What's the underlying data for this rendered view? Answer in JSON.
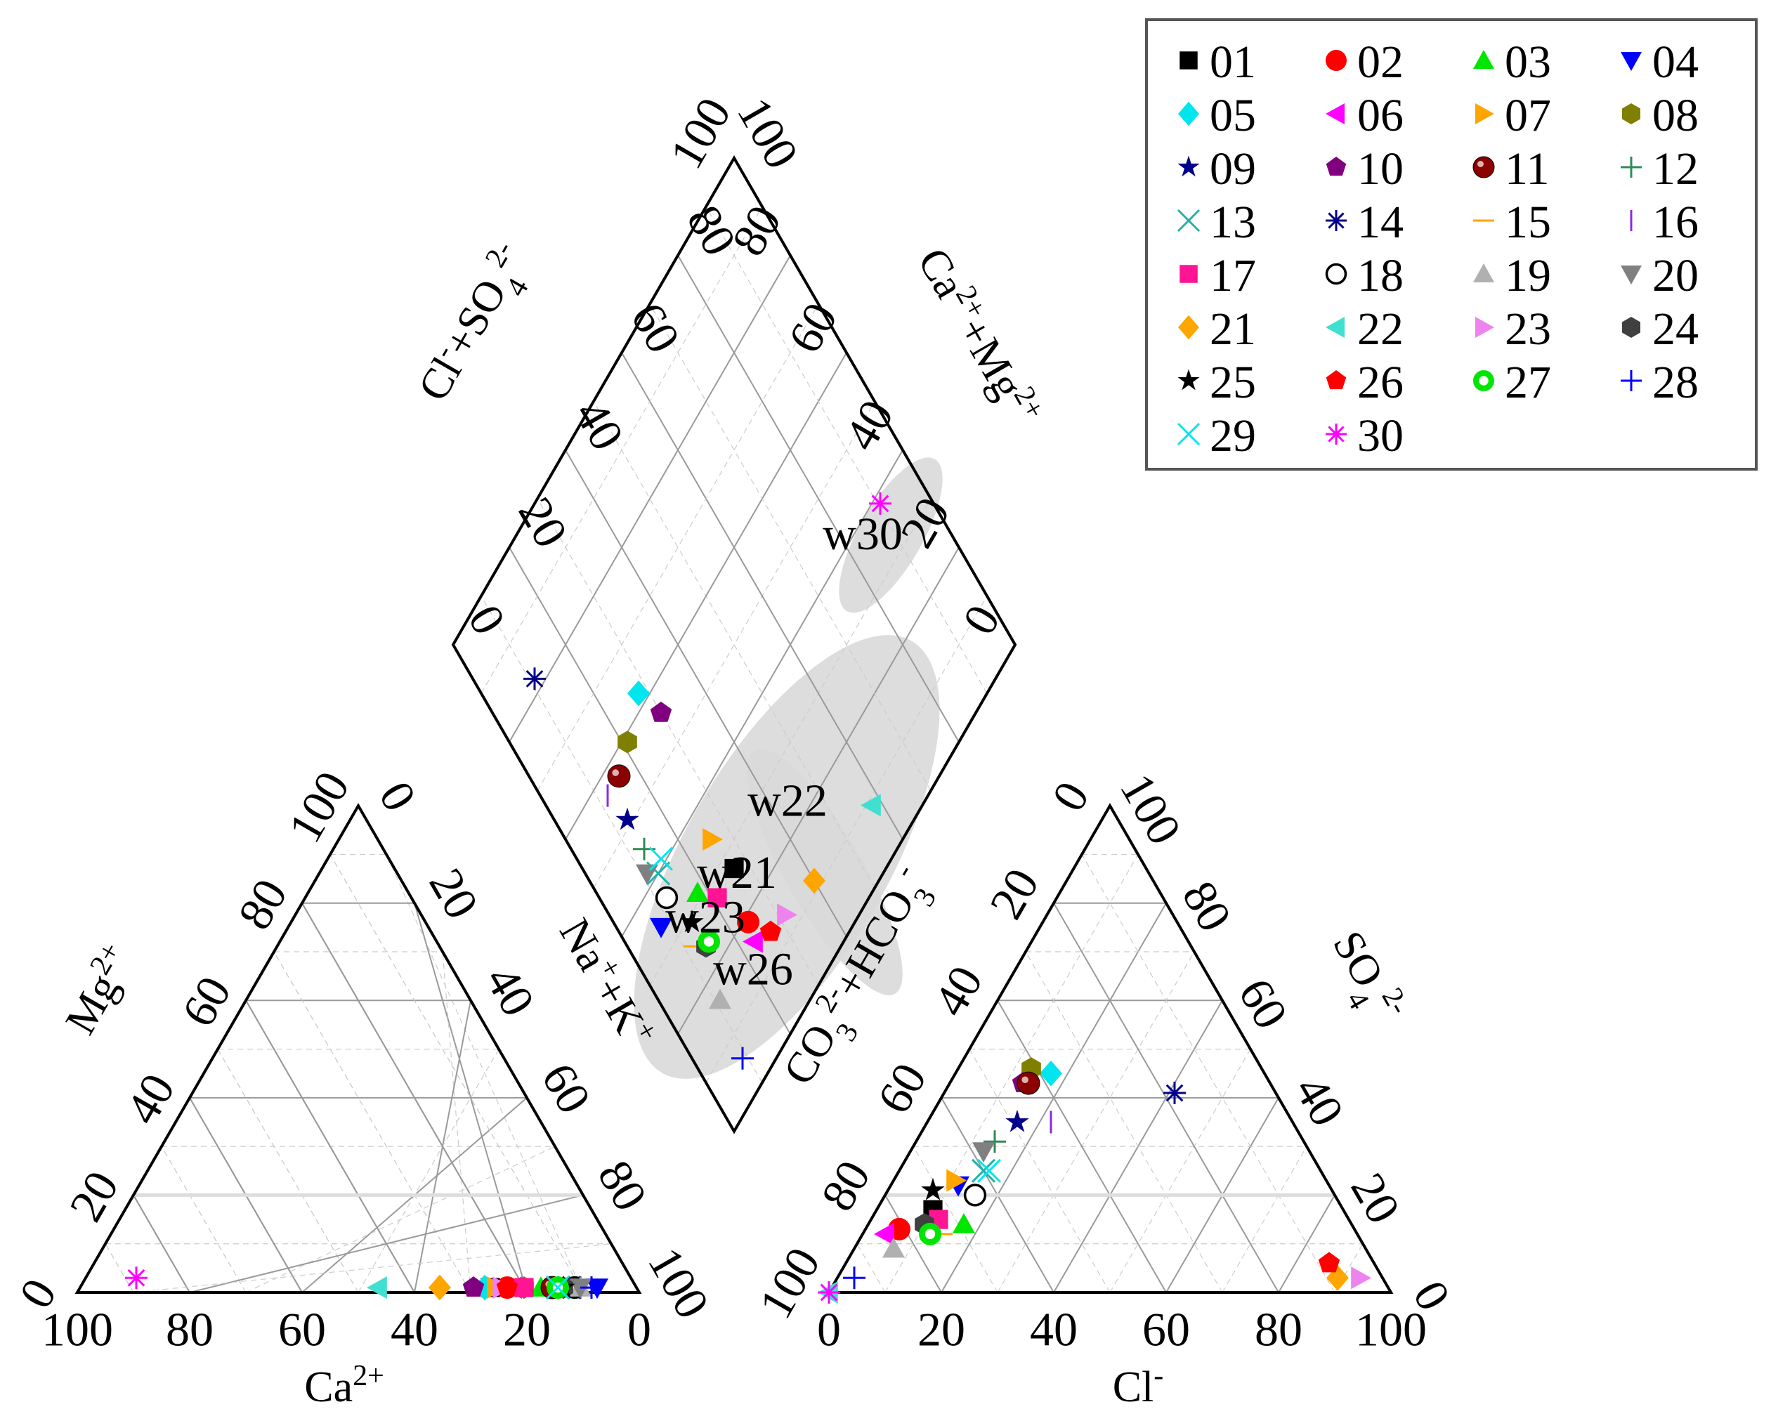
{
  "chart_data": {
    "type": "scatter",
    "subtype": "piper-diagram",
    "title": "",
    "tick_labels": [
      "0",
      "20",
      "40",
      "60",
      "80",
      "100"
    ],
    "axes": {
      "cation_ca": "Ca2+",
      "cation_mg": "Mg2+",
      "cation_na_k": "Na++K+",
      "anion_cl": "Cl-",
      "anion_so4": "SO42-",
      "anion_co3_hco3": "CO32-+HCO3-",
      "diamond_cl_so4": "Cl-+SO42-",
      "diamond_ca_mg": "Ca2++Mg2+"
    },
    "axis_text": {
      "ca": {
        "main": "Ca",
        "sup": "2+"
      },
      "mg": {
        "main": "Mg",
        "sup": "2+"
      },
      "nak": {
        "a": "Na",
        "asup": "+",
        "b": "+K",
        "bsup": "+"
      },
      "cl": {
        "main": "Cl",
        "sup": "-"
      },
      "so4": {
        "main": "SO",
        "sub": "4",
        "sup": "2-"
      },
      "co3": {
        "a": "CO",
        "asub": "3",
        "asup": "2-",
        "b": "+HCO",
        "bsub": "3",
        "bsup": "-"
      },
      "clso4": {
        "a": "Cl",
        "asup": "-",
        "b": "+SO",
        "bsub": "4",
        "bsup": "2-"
      },
      "camg": {
        "a": "Ca",
        "asup": "2+",
        "b": "+Mg",
        "bsup": "2+"
      }
    },
    "annotations": [
      "w30",
      "w22",
      "w21",
      "w23",
      "w26"
    ],
    "legend_position": "top-right",
    "series": [
      {
        "name": "01",
        "color": "#000000",
        "marker": "square",
        "ca": 26,
        "mg": 1,
        "cl": 10,
        "so4": 17
      },
      {
        "name": "02",
        "color": "#ff0000",
        "marker": "circle",
        "ca": 23,
        "mg": 1,
        "cl": 6,
        "so4": 13
      },
      {
        "name": "03",
        "color": "#00e600",
        "marker": "triangle-up",
        "ca": 17,
        "mg": 1,
        "cl": 17,
        "so4": 14
      },
      {
        "name": "04",
        "color": "#0000ff",
        "marker": "triangle-down",
        "ca": 7,
        "mg": 1,
        "cl": 12,
        "so4": 22
      },
      {
        "name": "05",
        "color": "#00e5ee",
        "marker": "diamond",
        "ca": 27,
        "mg": 1,
        "cl": 17,
        "so4": 45
      },
      {
        "name": "06",
        "color": "#ff00ff",
        "marker": "triangle-left",
        "ca": 22,
        "mg": 1,
        "cl": 4,
        "so4": 12
      },
      {
        "name": "07",
        "color": "#ffa500",
        "marker": "triangle-right",
        "ca": 25,
        "mg": 1,
        "cl": 11,
        "so4": 23
      },
      {
        "name": "08",
        "color": "#808000",
        "marker": "hexagon",
        "ca": 20,
        "mg": 1,
        "cl": 13,
        "so4": 46
      },
      {
        "name": "09",
        "color": "#00008b",
        "marker": "star",
        "ca": 12,
        "mg": 1,
        "cl": 16,
        "so4": 35
      },
      {
        "name": "10",
        "color": "#800080",
        "marker": "pentagon",
        "ca": 29,
        "mg": 1,
        "cl": 13,
        "so4": 43
      },
      {
        "name": "11",
        "color": "#8b0000",
        "marker": "ball",
        "ca": 15,
        "mg": 1,
        "cl": 14,
        "so4": 43
      },
      {
        "name": "12",
        "color": "#2e8b57",
        "marker": "plus",
        "ca": 12,
        "mg": 1,
        "cl": 14,
        "so4": 31
      },
      {
        "name": "13",
        "color": "#20b2aa",
        "marker": "x",
        "ca": 12,
        "mg": 1,
        "cl": 15,
        "so4": 25
      },
      {
        "name": "14",
        "color": "#00008b",
        "marker": "asterisk",
        "ca": 10,
        "mg": 1,
        "cl": 41,
        "so4": 41
      },
      {
        "name": "15",
        "color": "#ffa500",
        "marker": "dash",
        "ca": 11,
        "mg": 1,
        "cl": 14,
        "so4": 12
      },
      {
        "name": "16",
        "color": "#8a2be2",
        "marker": "vbar",
        "ca": 11,
        "mg": 1,
        "cl": 22,
        "so4": 35
      },
      {
        "name": "17",
        "color": "#ff1493",
        "marker": "square",
        "ca": 20,
        "mg": 1,
        "cl": 12,
        "so4": 15
      },
      {
        "name": "18",
        "color": "#000000",
        "marker": "circle-open",
        "ca": 11,
        "mg": 1,
        "cl": 16,
        "so4": 20
      },
      {
        "name": "19",
        "color": "#b0b0b0",
        "marker": "triangle-up",
        "ca": 10,
        "mg": 1,
        "cl": 7,
        "so4": 9
      },
      {
        "name": "20",
        "color": "#808080",
        "marker": "triangle-down",
        "ca": 10,
        "mg": 1,
        "cl": 13,
        "so4": 29
      },
      {
        "name": "21",
        "color": "#ffa500",
        "marker": "diamond",
        "ca": 35,
        "mg": 1,
        "cl": 89,
        "so4": 3
      },
      {
        "name": "22",
        "color": "#40e0d0",
        "marker": "triangle-left",
        "ca": 46,
        "mg": 1,
        "cl": 0,
        "so4": 0
      },
      {
        "name": "23",
        "color": "#ee82ee",
        "marker": "triangle-right",
        "ca": 24,
        "mg": 1,
        "cl": 93,
        "so4": 3
      },
      {
        "name": "24",
        "color": "#404040",
        "marker": "hexagon",
        "ca": 13,
        "mg": 1,
        "cl": 10,
        "so4": 14
      },
      {
        "name": "25",
        "color": "#000000",
        "marker": "star",
        "ca": 13,
        "mg": 1,
        "cl": 8,
        "so4": 21
      },
      {
        "name": "26",
        "color": "#ff0000",
        "marker": "pentagon",
        "ca": 23,
        "mg": 1,
        "cl": 86,
        "so4": 6
      },
      {
        "name": "27",
        "color": "#00e600",
        "marker": "ring",
        "ca": 14,
        "mg": 1,
        "cl": 12,
        "so4": 12
      },
      {
        "name": "28",
        "color": "#0000ff",
        "marker": "plus",
        "ca": 8,
        "mg": 1,
        "cl": 3,
        "so4": 3
      },
      {
        "name": "29",
        "color": "#00e5ee",
        "marker": "x",
        "ca": 14,
        "mg": 1,
        "cl": 16,
        "so4": 25
      },
      {
        "name": "30",
        "color": "#ff00ff",
        "marker": "asterisk",
        "ca": 88,
        "mg": 3,
        "cl": 0,
        "so4": 0
      }
    ],
    "diamond_points": [
      {
        "name": "30",
        "clso4": 38.5,
        "camg": 90.5
      },
      {
        "name": "22",
        "clso4": 9,
        "camg": 58
      },
      {
        "name": "21",
        "clso4": 11.5,
        "camg": 40
      },
      {
        "name": "23",
        "clso4": 13,
        "camg": 31.5
      },
      {
        "name": "26",
        "clso4": 14,
        "camg": 27
      }
    ],
    "diamond_groups": [
      {
        "label": "w30",
        "points": [
          "30"
        ]
      },
      {
        "label": "w22/w21/w23/w26",
        "points": [
          "22",
          "21",
          "23",
          "26"
        ]
      }
    ]
  }
}
